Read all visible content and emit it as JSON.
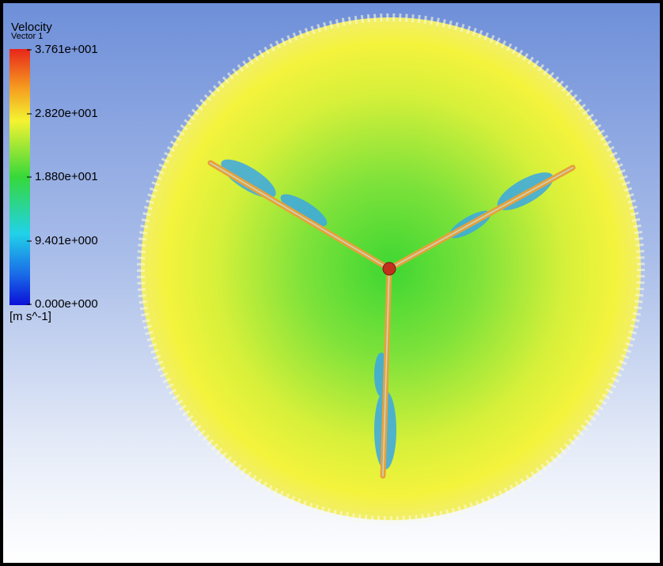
{
  "legend": {
    "title": "Velocity",
    "subtitle": "Vector 1",
    "ticks": [
      "3.761e+001",
      "2.820e+001",
      "1.880e+001",
      "9.401e+000",
      "0.000e+000"
    ],
    "unit": "[m s^-1]"
  }
}
